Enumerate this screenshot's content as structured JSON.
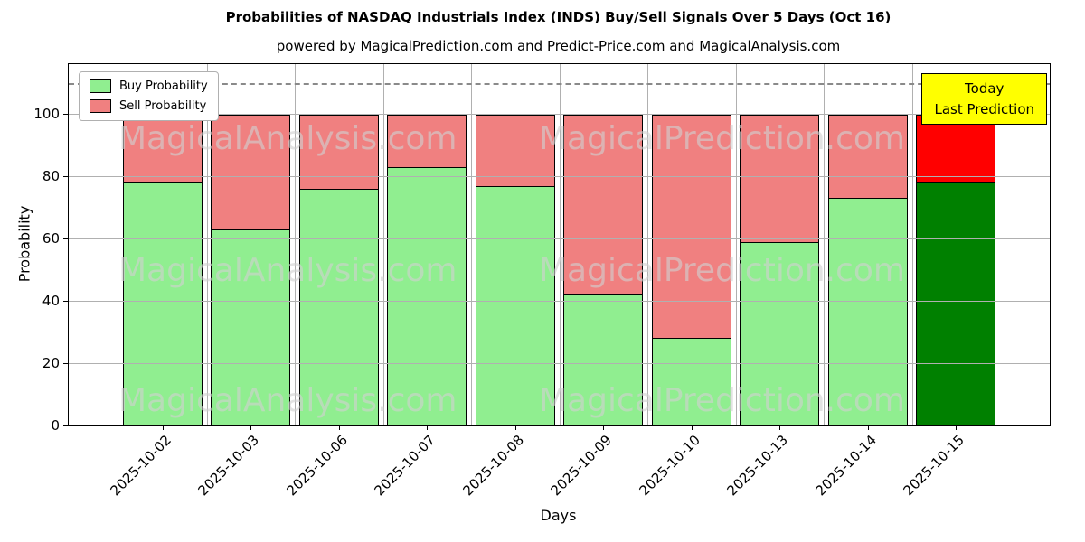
{
  "chart_data": {
    "type": "bar",
    "stacked": true,
    "title": "Probabilities of NASDAQ Industrials Index (INDS) Buy/Sell Signals Over 5 Days (Oct 16)",
    "subtitle": "powered by MagicalPrediction.com and Predict-Price.com and MagicalAnalysis.com",
    "xlabel": "Days",
    "ylabel": "Probability",
    "categories": [
      "2025-10-02",
      "2025-10-03",
      "2025-10-06",
      "2025-10-07",
      "2025-10-08",
      "2025-10-09",
      "2025-10-10",
      "2025-10-13",
      "2025-10-14",
      "2025-10-15"
    ],
    "series": [
      {
        "name": "Buy Probability",
        "values": [
          78,
          63,
          76,
          83,
          77,
          42,
          28,
          59,
          73,
          78
        ],
        "colors": [
          "#90EE90",
          "#90EE90",
          "#90EE90",
          "#90EE90",
          "#90EE90",
          "#90EE90",
          "#90EE90",
          "#90EE90",
          "#90EE90",
          "#008000"
        ]
      },
      {
        "name": "Sell Probability",
        "values": [
          22,
          37,
          24,
          17,
          23,
          58,
          72,
          41,
          27,
          22
        ],
        "colors": [
          "#F08080",
          "#F08080",
          "#F08080",
          "#F08080",
          "#F08080",
          "#F08080",
          "#F08080",
          "#F08080",
          "#F08080",
          "#FF0000"
        ]
      }
    ],
    "yticks": [
      0,
      20,
      40,
      60,
      80,
      100
    ],
    "ylim": [
      0,
      116
    ],
    "dashed_line_y": 110,
    "grid": true,
    "legend_position": "upper left",
    "annotation": {
      "line1": "Today",
      "line2": "Last Prediction",
      "bg": "#ffff00"
    },
    "watermarks": {
      "left_text": "MagicalAnalysis.com",
      "right_text": "MagicalPrediction.com"
    },
    "colors": {
      "grid": "#b0b0b0",
      "bar_edge": "#000000",
      "dashed_line": "#8a8a8a"
    }
  }
}
